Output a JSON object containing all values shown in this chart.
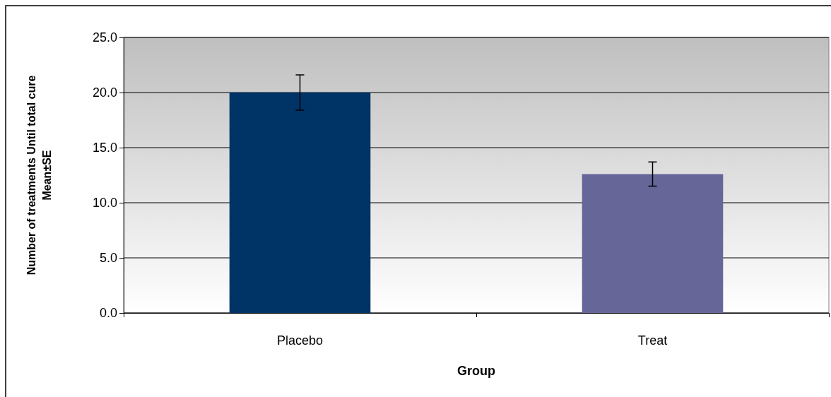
{
  "chart_data": {
    "type": "bar",
    "xlabel": "Group",
    "ylabel": "Number of treatments Until total cure\nMean±SE",
    "categories": [
      "Placebo",
      "Treat"
    ],
    "values": [
      20.0,
      12.6
    ],
    "errors": [
      1.6,
      1.1
    ],
    "colors": [
      "#003366",
      "#666699"
    ],
    "ylim": [
      0,
      25
    ],
    "yticks": [
      {
        "value": 0,
        "label": "0.0"
      },
      {
        "value": 5,
        "label": "5.0"
      },
      {
        "value": 10,
        "label": "10.0"
      },
      {
        "value": 15,
        "label": "15.0"
      },
      {
        "value": 20,
        "label": "20.0"
      },
      {
        "value": 25,
        "label": "25.0"
      }
    ],
    "grid": "y"
  }
}
